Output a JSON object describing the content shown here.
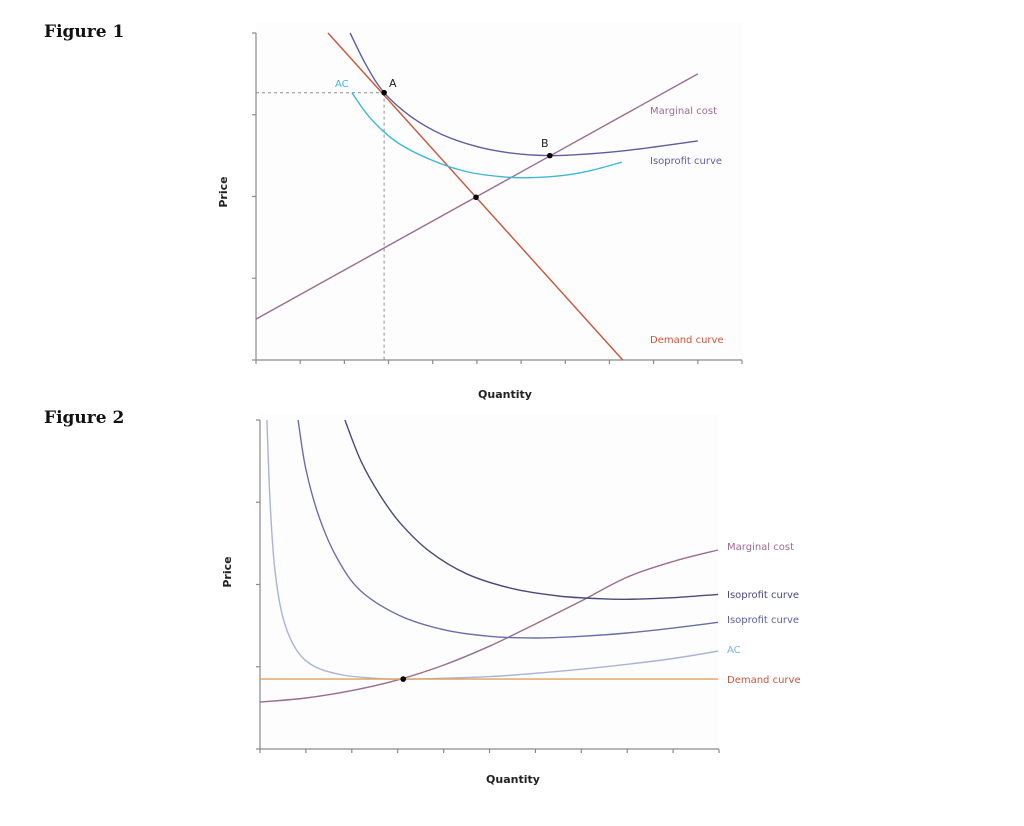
{
  "figures": {
    "fig1_title": "Figure 1",
    "fig2_title": "Figure 2"
  },
  "chart_data": [
    {
      "type": "line",
      "title": "Figure 1",
      "xlabel": "Quantity",
      "ylabel": "Price",
      "xlim": [
        0,
        11
      ],
      "ylim": [
        0,
        4
      ],
      "xticks": [
        0,
        1,
        2,
        3,
        4,
        5,
        6,
        7,
        8,
        9,
        10,
        11
      ],
      "yticks": [
        0,
        1,
        2,
        3,
        4
      ],
      "tick_labels_shown": false,
      "grid": false,
      "series": [
        {
          "name": "Demand curve",
          "label": "Demand curve",
          "color": "#c8553a",
          "points": [
            [
              1.63,
              4.0
            ],
            [
              8.3,
              0.0
            ]
          ]
        },
        {
          "name": "Marginal cost",
          "label": "Marginal cost",
          "color": "#9a6c92",
          "points": [
            [
              0,
              0.5
            ],
            [
              10,
              3.5
            ]
          ]
        },
        {
          "name": "Isoprofit curve",
          "label": "Isoprofit curve",
          "color": "#5d5f9e",
          "points": [
            [
              2.13,
              4.0
            ],
            [
              2.5,
              3.6
            ],
            [
              2.9,
              3.27
            ],
            [
              3.5,
              2.98
            ],
            [
              4.2,
              2.76
            ],
            [
              5.0,
              2.61
            ],
            [
              5.8,
              2.53
            ],
            [
              6.65,
              2.5
            ],
            [
              7.5,
              2.52
            ],
            [
              8.5,
              2.57
            ],
            [
              10,
              2.68
            ]
          ]
        },
        {
          "name": "AC",
          "label": "AC",
          "color": "#3fb8d4",
          "points": [
            [
              2.17,
              3.27
            ],
            [
              2.6,
              2.95
            ],
            [
              3.2,
              2.66
            ],
            [
              4.0,
              2.44
            ],
            [
              4.8,
              2.3
            ],
            [
              5.6,
              2.24
            ],
            [
              6.2,
              2.23
            ],
            [
              7.0,
              2.26
            ],
            [
              7.6,
              2.32
            ],
            [
              8.28,
              2.42
            ]
          ]
        }
      ],
      "points": [
        {
          "label": "A",
          "x": 2.9,
          "y": 3.27
        },
        {
          "label": "B",
          "x": 6.65,
          "y": 2.5
        },
        {
          "label": "",
          "x": 4.98,
          "y": 1.99
        }
      ],
      "reference_lines": [
        {
          "style": "dashed",
          "from": [
            0,
            3.27
          ],
          "to": [
            2.9,
            3.27
          ]
        },
        {
          "style": "dashed",
          "from": [
            2.9,
            3.27
          ],
          "to": [
            2.9,
            0
          ]
        }
      ]
    },
    {
      "type": "line",
      "title": "Figure 2",
      "xlabel": "Quantity",
      "ylabel": "Price",
      "xlim": [
        0,
        10
      ],
      "ylim": [
        0,
        4
      ],
      "xticks": [
        0,
        1,
        2,
        3,
        4,
        5,
        6,
        7,
        8,
        9,
        10
      ],
      "yticks": [
        0,
        1,
        2,
        3,
        4
      ],
      "tick_labels_shown": false,
      "grid": false,
      "series": [
        {
          "name": "Marginal cost",
          "label": "Marginal cost",
          "color": "#9a6c92",
          "points": [
            [
              0,
              0.57
            ],
            [
              1,
              0.62
            ],
            [
              2,
              0.71
            ],
            [
              3,
              0.84
            ],
            [
              4,
              1.02
            ],
            [
              5,
              1.25
            ],
            [
              6,
              1.52
            ],
            [
              7,
              1.8
            ],
            [
              8,
              2.09
            ],
            [
              9,
              2.28
            ],
            [
              9.98,
              2.42
            ]
          ]
        },
        {
          "name": "Isoprofit curve 1",
          "label": "Isoprofit curve",
          "color": "#4a4a78",
          "points": [
            [
              1.85,
              4.0
            ],
            [
              2.2,
              3.5
            ],
            [
              2.6,
              3.1
            ],
            [
              3.05,
              2.75
            ],
            [
              3.7,
              2.4
            ],
            [
              4.5,
              2.13
            ],
            [
              5.5,
              1.95
            ],
            [
              6.5,
              1.86
            ],
            [
              7.3,
              1.83
            ],
            [
              7.95,
              1.82
            ],
            [
              9,
              1.84
            ],
            [
              9.98,
              1.88
            ]
          ]
        },
        {
          "name": "Isoprofit curve 2",
          "label": "Isoprofit curve",
          "color": "#6a6ea6",
          "points": [
            [
              0.83,
              4.0
            ],
            [
              1.0,
              3.4
            ],
            [
              1.3,
              2.8
            ],
            [
              1.7,
              2.3
            ],
            [
              2.2,
              1.92
            ],
            [
              3.05,
              1.62
            ],
            [
              4.0,
              1.45
            ],
            [
              5.0,
              1.37
            ],
            [
              6.0,
              1.35
            ],
            [
              7.0,
              1.37
            ],
            [
              8.0,
              1.41
            ],
            [
              9.0,
              1.47
            ],
            [
              9.98,
              1.54
            ]
          ]
        },
        {
          "name": "AC",
          "label": "AC",
          "color": "#a9b3d6",
          "points": [
            [
              0.15,
              4.0
            ],
            [
              0.22,
              3.0
            ],
            [
              0.32,
              2.2
            ],
            [
              0.5,
              1.6
            ],
            [
              0.8,
              1.2
            ],
            [
              1.2,
              1.0
            ],
            [
              1.8,
              0.9
            ],
            [
              2.5,
              0.86
            ],
            [
              3.12,
              0.85
            ],
            [
              4,
              0.86
            ],
            [
              5,
              0.88
            ],
            [
              6,
              0.92
            ],
            [
              7,
              0.97
            ],
            [
              8,
              1.03
            ],
            [
              9,
              1.1
            ],
            [
              9.98,
              1.19
            ]
          ]
        },
        {
          "name": "Demand curve",
          "label": "Demand curve",
          "color": "#e3a15a",
          "points": [
            [
              0,
              0.85
            ],
            [
              9.98,
              0.85
            ]
          ]
        }
      ],
      "points": [
        {
          "label": "",
          "x": 3.12,
          "y": 0.85
        }
      ]
    }
  ]
}
